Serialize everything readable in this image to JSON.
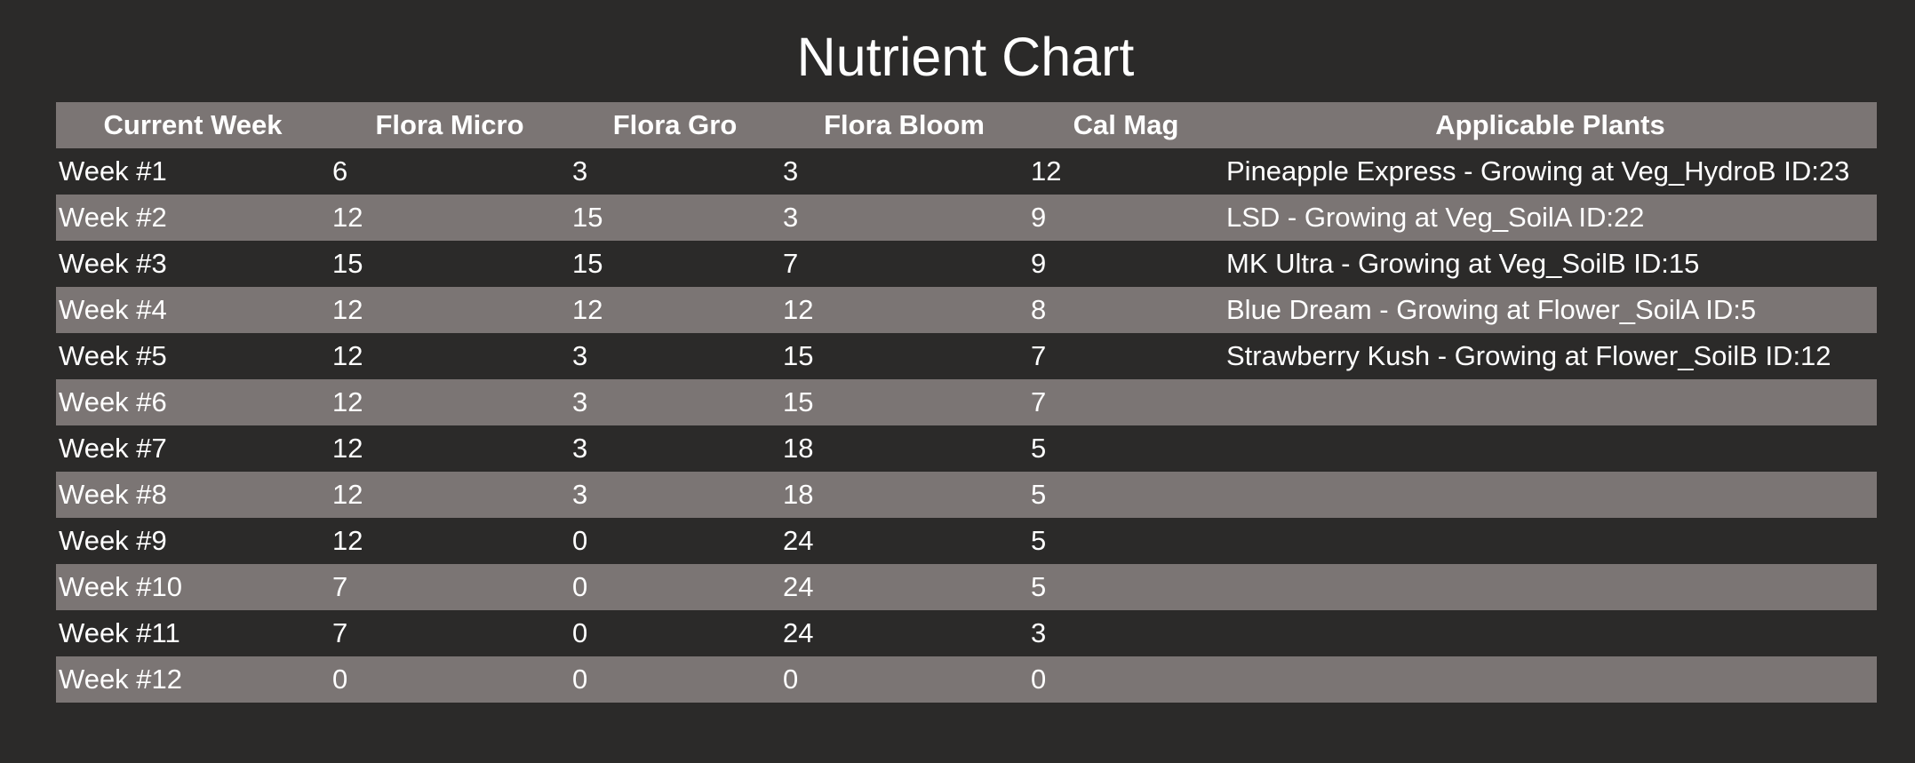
{
  "page": {
    "title": "Nutrient Chart",
    "background_color": "#2b2a29",
    "stripe_color": "#7b7574",
    "text_color": "#ffffff"
  },
  "table": {
    "headers": [
      "Current Week",
      "Flora Micro",
      "Flora Gro",
      "Flora Bloom",
      "Cal Mag",
      "Applicable Plants"
    ],
    "rows": [
      [
        "Week #1",
        "6",
        "3",
        "3",
        "12",
        "Pineapple Express - Growing at Veg_HydroB ID:23"
      ],
      [
        "Week #2",
        "12",
        "15",
        "3",
        "9",
        "LSD - Growing at Veg_SoilA ID:22"
      ],
      [
        "Week #3",
        "15",
        "15",
        "7",
        "9",
        "MK Ultra - Growing at Veg_SoilB ID:15"
      ],
      [
        "Week #4",
        "12",
        "12",
        "12",
        "8",
        "Blue Dream - Growing at Flower_SoilA ID:5"
      ],
      [
        "Week #5",
        "12",
        "3",
        "15",
        "7",
        "Strawberry Kush - Growing at Flower_SoilB ID:12"
      ],
      [
        "Week #6",
        "12",
        "3",
        "15",
        "7",
        ""
      ],
      [
        "Week #7",
        "12",
        "3",
        "18",
        "5",
        ""
      ],
      [
        "Week #8",
        "12",
        "3",
        "18",
        "5",
        ""
      ],
      [
        "Week #9",
        "12",
        "0",
        "24",
        "5",
        ""
      ],
      [
        "Week #10",
        "7",
        "0",
        "24",
        "5",
        ""
      ],
      [
        "Week #11",
        "7",
        "0",
        "24",
        "3",
        ""
      ],
      [
        "Week #12",
        "0",
        "0",
        "0",
        "0",
        ""
      ]
    ]
  }
}
